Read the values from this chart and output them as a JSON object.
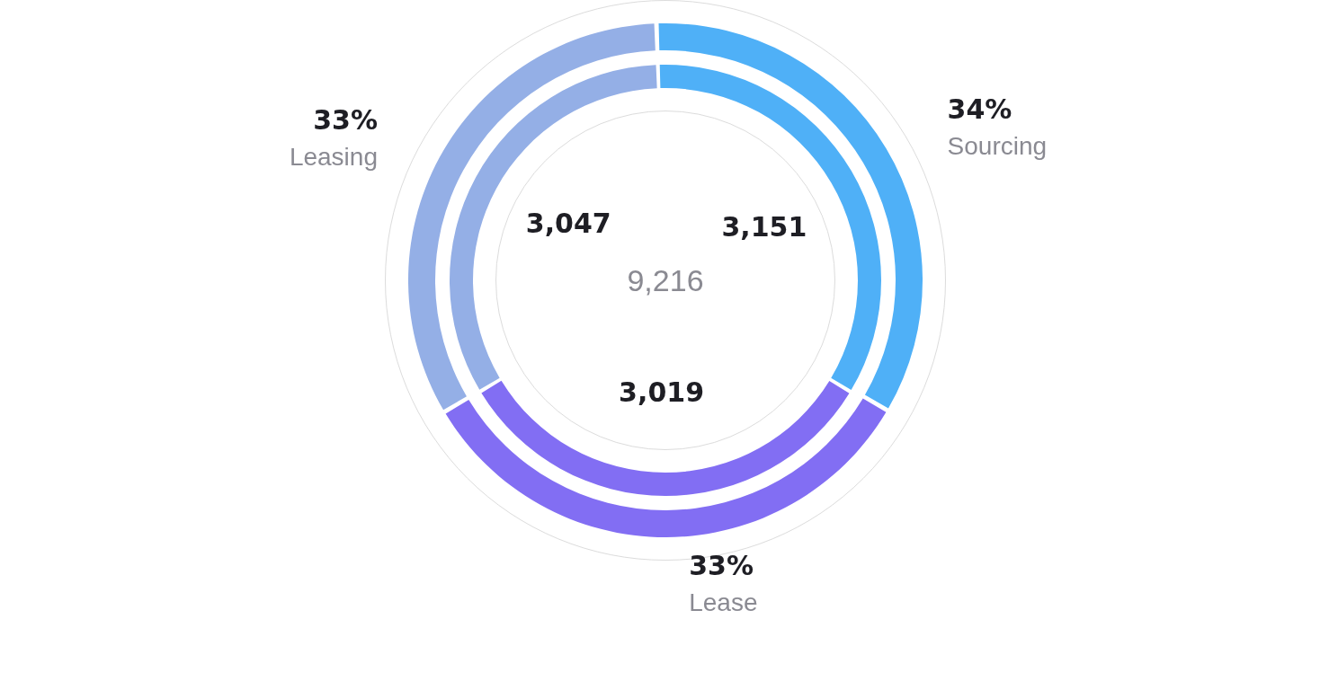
{
  "chart_data": {
    "type": "donut",
    "categories": [
      "Sourcing",
      "Lease",
      "Leasing"
    ],
    "colors": [
      "#4fb0f7",
      "#826ef3",
      "#94afe6"
    ],
    "series": [
      {
        "values": [
          34,
          33,
          33
        ],
        "value_labels": [
          "34%",
          "33%",
          "33%"
        ]
      },
      {
        "values": [
          3151,
          3019,
          3047
        ],
        "value_labels": [
          "3,151",
          "3,019",
          "3,047"
        ]
      }
    ],
    "annotations": [
      "9,216"
    ],
    "legend": false
  }
}
